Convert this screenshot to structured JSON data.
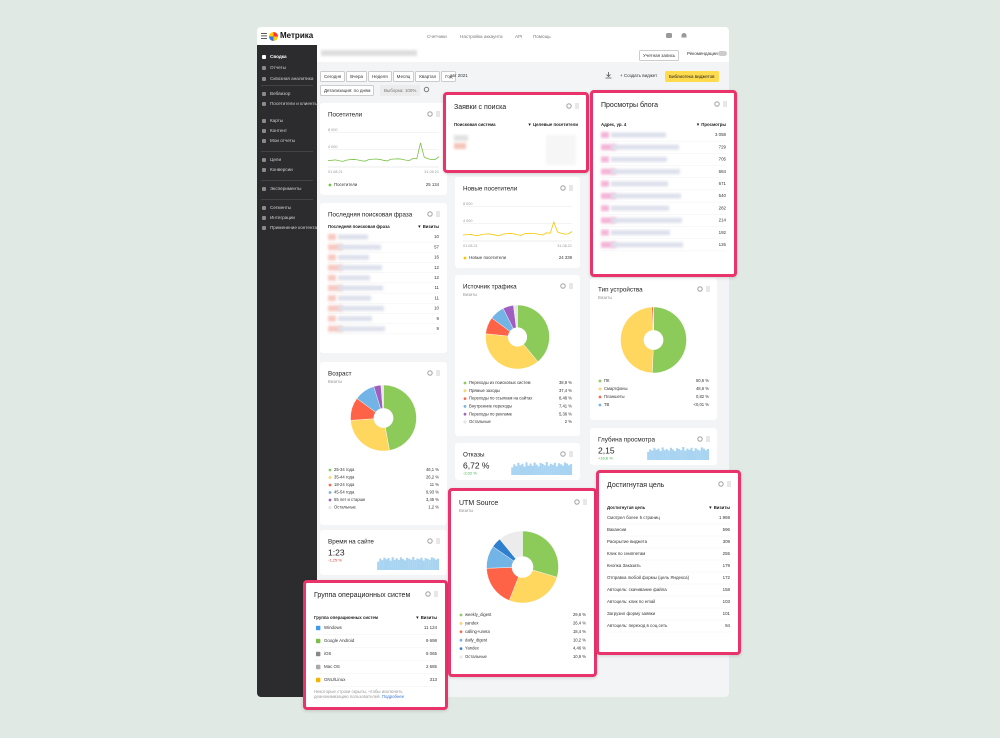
{
  "header": {
    "logo": "Метрика",
    "nav": [
      "Счетчики",
      "Настройка аккаунта",
      "API",
      "Помощь"
    ],
    "account": "Учетная запись",
    "recommendations": "Рекомендации"
  },
  "sidebar": [
    "Сводка",
    "Отчеты",
    "Сквозная аналитика",
    "Вебвизор",
    "Посетители и клиенты",
    "Карты",
    "Контент",
    "Мои отчеты",
    "Цели",
    "Конверсии",
    "Эксперименты",
    "Сегменты",
    "Интеграции",
    "Применение контента"
  ],
  "toolbar": {
    "periods": [
      "Сегодня",
      "Вчера",
      "Неделя",
      "Месяц",
      "Квартал",
      "Год"
    ],
    "date": "авг 2021",
    "create": "+ Создать виджет",
    "library": "Библиотека виджетов",
    "detail": "Детализация: по дням",
    "sample": "Выборка: 100%"
  },
  "widgets": [
    {
      "type": "line",
      "title": "Посетители",
      "name": "Посетители",
      "total": "25 134",
      "color": "#7ac143",
      "categories": [
        "01.08.21",
        null,
        null,
        null,
        null,
        null,
        null,
        null,
        null,
        null,
        null,
        null,
        null,
        null,
        null,
        null,
        null,
        null,
        null,
        null,
        null,
        null,
        null,
        null,
        null,
        null,
        null,
        null,
        null,
        null,
        "31.08.21"
      ],
      "values": [
        1500,
        1550,
        1650,
        1450,
        1300,
        1600,
        1700,
        1750,
        1650,
        1450,
        1350,
        1700,
        1800,
        1850,
        1750,
        1550,
        1400,
        1800,
        1850,
        1900,
        1800,
        1600,
        1500,
        2000,
        1900,
        5600,
        2300,
        1900,
        1700,
        1750,
        2400
      ],
      "ylim": [
        0,
        8800
      ],
      "yticks": [
        {
          "value": 4000,
          "label": "4 000"
        },
        {
          "value": 8000,
          "label": "8 000"
        }
      ]
    },
    {
      "type": "table",
      "title": "Последняя поисковая фраза",
      "columns": [
        "Последняя поисковая фраза",
        "▼ Визиты"
      ],
      "values": [
        10,
        57,
        16,
        12,
        12,
        11,
        11,
        10,
        9,
        9
      ]
    },
    {
      "type": "pie",
      "title": "Возраст",
      "subtitle": "Визиты",
      "labels": [
        "25-34 года",
        "35-44 года",
        "18-24 года",
        "45-54 года",
        "55 лет и старше",
        "Остальные"
      ],
      "values": [
        46.1,
        26.2,
        11,
        9.93,
        3.45,
        1.2
      ],
      "value_labels": [
        "46,1 %",
        "26,2 %",
        "11 %",
        "9,93 %",
        "3,45 %",
        "1,2 %"
      ],
      "colors": [
        "#8ccb5a",
        "#ffd65e",
        "#ff6347",
        "#73b4e6",
        "#9f5fc0",
        "#e6e6e6"
      ]
    },
    {
      "type": "metric",
      "title": "Время на сайте",
      "value": "1:23",
      "change": "-1,25 %",
      "change_color": "#e0383e",
      "values": [
        40,
        55,
        48,
        60,
        52,
        58,
        45,
        62,
        50,
        57,
        49,
        61,
        53,
        47,
        59,
        55,
        50,
        63,
        48,
        56,
        52,
        60,
        46,
        58,
        54,
        49,
        61,
        57,
        50,
        55
      ]
    },
    {
      "type": "table",
      "title": "Группа операционных систем",
      "highlighted": true,
      "columns": [
        "Группа операционных систем",
        "▼ Визиты"
      ],
      "labels": [
        "Windows",
        "Google Android",
        "iOS",
        "Mac OS",
        "GNU/Linux"
      ],
      "values": [
        "11 124",
        "9 698",
        "5 065",
        "2 685",
        "313"
      ],
      "note": "Некоторые строки скрыты, чтобы исключить деанонимизацию пользователей.",
      "link": "Подробнее"
    },
    {
      "type": "table",
      "title": "Заявки с поиска",
      "highlighted": true,
      "columns": [
        "Поисковая система",
        "▼ Целевые посетители"
      ]
    },
    {
      "type": "line",
      "title": "Новые посетители",
      "name": "Новые посетители",
      "total": "24 339",
      "color": "#f7c600",
      "categories": [
        "01.08.21",
        null,
        null,
        null,
        null,
        null,
        null,
        null,
        null,
        null,
        null,
        null,
        null,
        null,
        null,
        null,
        null,
        null,
        null,
        null,
        null,
        null,
        null,
        null,
        null,
        null,
        null,
        null,
        null,
        null,
        "31.08.21"
      ],
      "values": [
        1400,
        1450,
        1550,
        1350,
        1200,
        1500,
        1600,
        1650,
        1550,
        1350,
        1250,
        1600,
        1700,
        1750,
        1650,
        1450,
        1300,
        1700,
        1750,
        1800,
        1700,
        1500,
        1400,
        1900,
        1800,
        4400,
        2100,
        1800,
        1600,
        1650,
        2200
      ],
      "ylim": [
        0,
        8800
      ],
      "yticks": [
        {
          "value": 4000,
          "label": "4 000"
        },
        {
          "value": 8000,
          "label": "8 000"
        }
      ]
    },
    {
      "type": "pie",
      "title": "Источник трафика",
      "subtitle": "Визиты",
      "labels": [
        "Переходы из поисковых систем",
        "Прямые заходы",
        "Переходы по ссылкам на сайтах",
        "Внутренние переходы",
        "Переходы по рекламе",
        "Остальные"
      ],
      "values": [
        38.8,
        37.4,
        8.48,
        7.41,
        5.36,
        2
      ],
      "value_labels": [
        "38,8 %",
        "37,4 %",
        "8,48 %",
        "7,41 %",
        "5,36 %",
        "2 %"
      ],
      "colors": [
        "#8ccb5a",
        "#ffd65e",
        "#ff6347",
        "#73b4e6",
        "#9f5fc0",
        "#e6e6e6"
      ]
    },
    {
      "type": "metric",
      "title": "Отказы",
      "value": "6,72 %",
      "change": "-2,02 %",
      "change_color": "#3bb34a",
      "values": [
        30,
        42,
        35,
        48,
        38,
        44,
        33,
        50,
        37,
        45,
        36,
        49,
        41,
        34,
        47,
        43,
        38,
        51,
        36,
        44,
        40,
        48,
        34,
        46,
        42,
        37,
        49,
        45,
        38,
        43
      ]
    },
    {
      "type": "pie",
      "title": "UTM Source",
      "subtitle": "Визиты",
      "highlighted": true,
      "labels": [
        "weekly_digest",
        "yandex",
        "calling+uneta",
        "daily_digest",
        "Yandex",
        "Остальные"
      ],
      "values": [
        29.6,
        26.4,
        18.4,
        10.2,
        4.46,
        10.9
      ],
      "value_labels": [
        "29,6 %",
        "26,4 %",
        "18,4 %",
        "10,2 %",
        "4,46 %",
        "10,9 %"
      ],
      "colors": [
        "#8ccb5a",
        "#ffd65e",
        "#ff6347",
        "#73b4e6",
        "#2f7fcf",
        "#ececec"
      ]
    },
    {
      "type": "table",
      "title": "Просмотры блога",
      "highlighted": true,
      "columns": [
        "Адрес, ур. 4",
        "▼ Просмотры"
      ],
      "values": [
        "3 058",
        "729",
        "705",
        "684",
        "671",
        "540",
        "282",
        "214",
        "192",
        "126"
      ]
    },
    {
      "type": "pie",
      "title": "Тип устройства",
      "subtitle": "Визиты",
      "labels": [
        "ПК",
        "Смартфоны",
        "Планшеты",
        "ТВ"
      ],
      "values": [
        50.6,
        48.6,
        0.82,
        0.01
      ],
      "value_labels": [
        "50,6 %",
        "48,6 %",
        "0,82 %",
        "<0,01 %"
      ],
      "colors": [
        "#8ccb5a",
        "#ffd65e",
        "#ff6347",
        "#73b4e6"
      ]
    },
    {
      "type": "metric",
      "title": "Глубина просмотра",
      "value": "2,15",
      "change": "+16,6 %",
      "change_color": "#3bb34a",
      "values": [
        20,
        26,
        23,
        30,
        25,
        28,
        22,
        31,
        24,
        27,
        23,
        30,
        26,
        22,
        29,
        27,
        24,
        32,
        23,
        28,
        25,
        30,
        22,
        29,
        26,
        23,
        31,
        28,
        24,
        27
      ]
    },
    {
      "type": "table",
      "title": "Достигнутая цель",
      "highlighted": true,
      "columns": [
        "Достигнутая цель",
        "▼ Визиты"
      ],
      "labels": [
        "Смотрел более 5 страниц",
        "Вакансии",
        "Раскрытие виджета",
        "Клик по сниппетам",
        "Кнопка Заказать",
        "Отправка любой формы (цель Яндекса)",
        "Автоцель: скачивание файла",
        "Автоцель: клик по email",
        "Загрузил форму заявки",
        "Автоцель: переход в соц.сеть"
      ],
      "values": [
        "1 969",
        "596",
        "309",
        "255",
        "179",
        "172",
        "158",
        "103",
        "101",
        "94"
      ]
    }
  ]
}
